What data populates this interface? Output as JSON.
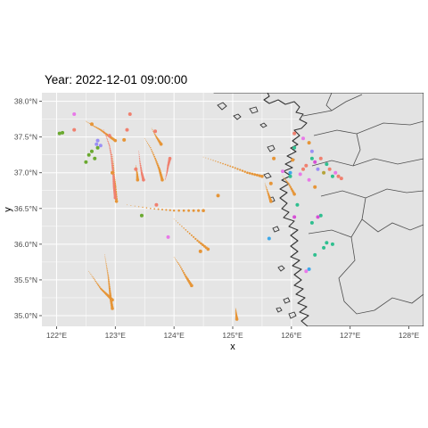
{
  "title": "Year: 2022-12-01 09:00:00",
  "axes": {
    "xlabel": "x",
    "ylabel": "y",
    "xlim": [
      121.75,
      128.25
    ],
    "ylim": [
      34.85,
      38.12
    ],
    "x_ticks": [
      {
        "value": 122,
        "label": "122°E"
      },
      {
        "value": 123,
        "label": "123°E"
      },
      {
        "value": 124,
        "label": "124°E"
      },
      {
        "value": 125,
        "label": "125°E"
      },
      {
        "value": 126,
        "label": "126°E"
      },
      {
        "value": 127,
        "label": "127°E"
      },
      {
        "value": 128,
        "label": "128°E"
      }
    ],
    "y_ticks": [
      {
        "value": 35.0,
        "label": "35.0°N"
      },
      {
        "value": 35.5,
        "label": "35.5°N"
      },
      {
        "value": 36.0,
        "label": "36.0°N"
      },
      {
        "value": 36.5,
        "label": "36.5°N"
      },
      {
        "value": 37.0,
        "label": "37.0°N"
      },
      {
        "value": 37.5,
        "label": "37.5°N"
      },
      {
        "value": 38.0,
        "label": "38.0°N"
      }
    ]
  },
  "colors": {
    "panel": "#e5e5e5",
    "grid": "#ffffff",
    "land": "#e3e3e3",
    "coast": "#333333",
    "orange": "#e69537",
    "salmon": "#f0806f",
    "green": "#6aa92f",
    "purple": "#9b8ff5",
    "pink": "#e879e8",
    "teal": "#2fbf8f",
    "blue": "#3fa8e8",
    "magenta": "#d64fd6",
    "olive": "#b5a33a"
  },
  "chart_data": {
    "type": "scatter",
    "title": "Year: 2022-12-01 09:00:00",
    "xlabel": "x",
    "ylabel": "y",
    "xlim": [
      121.75,
      128.25
    ],
    "ylim": [
      34.85,
      38.12
    ],
    "tracks": [
      {
        "color": "orange",
        "points": [
          [
            122.5,
            37.72
          ],
          [
            122.62,
            37.66
          ],
          [
            122.75,
            37.6
          ],
          [
            122.88,
            37.52
          ],
          [
            123.0,
            37.45
          ]
        ]
      },
      {
        "color": "orange",
        "points": [
          [
            123.5,
            37.48
          ],
          [
            123.6,
            37.35
          ],
          [
            123.68,
            37.2
          ],
          [
            123.75,
            37.05
          ],
          [
            123.8,
            36.9
          ]
        ]
      },
      {
        "color": "orange",
        "points": [
          [
            123.62,
            37.62
          ],
          [
            123.7,
            37.5
          ],
          [
            123.78,
            37.4
          ]
        ]
      },
      {
        "color": "orange",
        "points": [
          [
            122.95,
            37.25
          ],
          [
            122.97,
            37.1
          ],
          [
            122.98,
            36.95
          ],
          [
            123.0,
            36.8
          ],
          [
            123.02,
            36.6
          ]
        ]
      },
      {
        "color": "orange",
        "points": [
          [
            124.5,
            37.22
          ],
          [
            124.75,
            37.15
          ],
          [
            125.0,
            37.08
          ],
          [
            125.25,
            37.0
          ],
          [
            125.5,
            36.95
          ]
        ]
      },
      {
        "color": "orange",
        "points": [
          [
            123.2,
            36.55
          ],
          [
            123.6,
            36.5
          ],
          [
            124.0,
            36.47
          ],
          [
            124.5,
            36.47
          ]
        ]
      },
      {
        "color": "orange",
        "points": [
          [
            124.0,
            36.35
          ],
          [
            124.2,
            36.2
          ],
          [
            124.4,
            36.05
          ],
          [
            124.58,
            35.93
          ]
        ]
      },
      {
        "color": "orange",
        "points": [
          [
            122.82,
            35.85
          ],
          [
            122.85,
            35.7
          ],
          [
            122.88,
            35.55
          ],
          [
            122.9,
            35.4
          ],
          [
            122.92,
            35.25
          ],
          [
            122.95,
            35.1
          ]
        ]
      },
      {
        "color": "orange",
        "points": [
          [
            122.55,
            35.62
          ],
          [
            122.65,
            35.5
          ],
          [
            122.75,
            35.38
          ],
          [
            122.85,
            35.3
          ],
          [
            122.95,
            35.22
          ]
        ]
      },
      {
        "color": "orange",
        "points": [
          [
            124.0,
            35.82
          ],
          [
            124.1,
            35.7
          ],
          [
            124.2,
            35.55
          ],
          [
            124.3,
            35.42
          ]
        ]
      },
      {
        "color": "orange",
        "points": [
          [
            125.05,
            35.1
          ],
          [
            125.06,
            35.02
          ],
          [
            125.07,
            34.95
          ]
        ]
      },
      {
        "color": "orange",
        "points": [
          [
            123.35,
            37.1
          ],
          [
            123.37,
            37.0
          ],
          [
            123.38,
            36.9
          ]
        ]
      },
      {
        "color": "orange",
        "points": [
          [
            125.85,
            36.95
          ],
          [
            125.95,
            36.85
          ],
          [
            126.05,
            36.7
          ]
        ]
      },
      {
        "color": "orange",
        "points": [
          [
            125.55,
            36.85
          ],
          [
            125.6,
            36.72
          ],
          [
            125.65,
            36.6
          ]
        ]
      },
      {
        "color": "salmon",
        "points": [
          [
            122.8,
            37.6
          ],
          [
            122.85,
            37.5
          ],
          [
            122.9,
            37.38
          ],
          [
            122.93,
            37.25
          ],
          [
            122.95,
            37.1
          ],
          [
            122.97,
            36.95
          ],
          [
            122.98,
            36.8
          ],
          [
            123.0,
            36.65
          ]
        ]
      },
      {
        "color": "salmon",
        "points": [
          [
            123.85,
            36.9
          ],
          [
            123.88,
            37.0
          ],
          [
            123.9,
            37.1
          ],
          [
            123.93,
            37.2
          ]
        ]
      },
      {
        "color": "salmon",
        "points": [
          [
            123.4,
            37.3
          ],
          [
            123.42,
            37.15
          ],
          [
            123.45,
            37.0
          ],
          [
            123.48,
            36.9
          ]
        ]
      }
    ],
    "points": [
      {
        "x": 122.05,
        "y": 37.55,
        "color": "green"
      },
      {
        "x": 122.1,
        "y": 37.56,
        "color": "green"
      },
      {
        "x": 122.55,
        "y": 37.25,
        "color": "green"
      },
      {
        "x": 122.6,
        "y": 37.3,
        "color": "green"
      },
      {
        "x": 122.65,
        "y": 37.2,
        "color": "green"
      },
      {
        "x": 122.7,
        "y": 37.35,
        "color": "green"
      },
      {
        "x": 122.5,
        "y": 37.15,
        "color": "green"
      },
      {
        "x": 122.7,
        "y": 37.45,
        "color": "purple"
      },
      {
        "x": 122.75,
        "y": 37.38,
        "color": "purple"
      },
      {
        "x": 122.68,
        "y": 37.4,
        "color": "purple"
      },
      {
        "x": 122.3,
        "y": 37.82,
        "color": "pink"
      },
      {
        "x": 123.25,
        "y": 37.82,
        "color": "salmon"
      },
      {
        "x": 123.2,
        "y": 37.6,
        "color": "salmon"
      },
      {
        "x": 122.9,
        "y": 37.52,
        "color": "salmon"
      },
      {
        "x": 122.3,
        "y": 37.6,
        "color": "salmon"
      },
      {
        "x": 123.35,
        "y": 37.05,
        "color": "salmon"
      },
      {
        "x": 123.68,
        "y": 37.58,
        "color": "salmon"
      },
      {
        "x": 123.7,
        "y": 36.55,
        "color": "salmon"
      },
      {
        "x": 122.95,
        "y": 37.0,
        "color": "orange"
      },
      {
        "x": 123.15,
        "y": 37.46,
        "color": "orange"
      },
      {
        "x": 122.6,
        "y": 37.68,
        "color": "orange"
      },
      {
        "x": 123.45,
        "y": 36.4,
        "color": "green"
      },
      {
        "x": 123.9,
        "y": 36.1,
        "color": "pink"
      },
      {
        "x": 124.75,
        "y": 36.68,
        "color": "orange"
      },
      {
        "x": 124.45,
        "y": 35.9,
        "color": "orange"
      },
      {
        "x": 125.62,
        "y": 36.08,
        "color": "blue"
      },
      {
        "x": 125.7,
        "y": 37.2,
        "color": "orange"
      },
      {
        "x": 125.65,
        "y": 36.85,
        "color": "orange"
      },
      {
        "x": 125.85,
        "y": 37.02,
        "color": "pink"
      },
      {
        "x": 125.98,
        "y": 36.95,
        "color": "teal"
      },
      {
        "x": 126.02,
        "y": 37.18,
        "color": "orange"
      },
      {
        "x": 126.1,
        "y": 36.55,
        "color": "teal"
      },
      {
        "x": 126.05,
        "y": 36.38,
        "color": "magenta"
      },
      {
        "x": 125.98,
        "y": 37.0,
        "color": "blue"
      },
      {
        "x": 126.15,
        "y": 36.98,
        "color": "pink"
      },
      {
        "x": 126.2,
        "y": 37.05,
        "color": "salmon"
      },
      {
        "x": 126.3,
        "y": 36.9,
        "color": "pink"
      },
      {
        "x": 126.25,
        "y": 37.1,
        "color": "salmon"
      },
      {
        "x": 126.35,
        "y": 37.2,
        "color": "teal"
      },
      {
        "x": 126.05,
        "y": 37.35,
        "color": "teal"
      },
      {
        "x": 126.05,
        "y": 37.55,
        "color": "salmon"
      },
      {
        "x": 126.2,
        "y": 37.48,
        "color": "pink"
      },
      {
        "x": 126.35,
        "y": 37.3,
        "color": "purple"
      },
      {
        "x": 126.4,
        "y": 37.15,
        "color": "magenta"
      },
      {
        "x": 126.45,
        "y": 37.05,
        "color": "purple"
      },
      {
        "x": 126.5,
        "y": 37.2,
        "color": "salmon"
      },
      {
        "x": 126.55,
        "y": 37.0,
        "color": "olive"
      },
      {
        "x": 126.6,
        "y": 37.12,
        "color": "teal"
      },
      {
        "x": 126.65,
        "y": 37.05,
        "color": "salmon"
      },
      {
        "x": 126.7,
        "y": 36.95,
        "color": "teal"
      },
      {
        "x": 126.75,
        "y": 37.0,
        "color": "pink"
      },
      {
        "x": 126.8,
        "y": 36.95,
        "color": "salmon"
      },
      {
        "x": 126.85,
        "y": 36.92,
        "color": "salmon"
      },
      {
        "x": 126.4,
        "y": 36.8,
        "color": "orange"
      },
      {
        "x": 126.3,
        "y": 37.42,
        "color": "orange"
      },
      {
        "x": 126.5,
        "y": 36.4,
        "color": "teal"
      },
      {
        "x": 126.45,
        "y": 36.38,
        "color": "magenta"
      },
      {
        "x": 126.35,
        "y": 36.3,
        "color": "teal"
      },
      {
        "x": 126.55,
        "y": 35.95,
        "color": "teal"
      },
      {
        "x": 126.6,
        "y": 36.02,
        "color": "teal"
      },
      {
        "x": 126.4,
        "y": 35.85,
        "color": "teal"
      },
      {
        "x": 126.7,
        "y": 36.0,
        "color": "teal"
      },
      {
        "x": 126.3,
        "y": 35.65,
        "color": "blue"
      },
      {
        "x": 126.25,
        "y": 35.62,
        "color": "pink"
      }
    ]
  }
}
